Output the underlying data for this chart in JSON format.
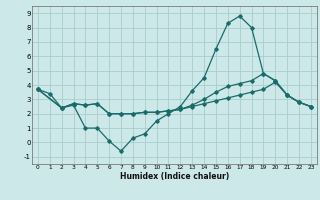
{
  "title": "",
  "xlabel": "Humidex (Indice chaleur)",
  "background_color": "#cde8e8",
  "grid_color": "#aacccc",
  "line_color": "#1a6b6b",
  "xlim": [
    -0.5,
    23.5
  ],
  "ylim": [
    -1.5,
    9.5
  ],
  "xticks": [
    0,
    1,
    2,
    3,
    4,
    5,
    6,
    7,
    8,
    9,
    10,
    11,
    12,
    13,
    14,
    15,
    16,
    17,
    18,
    19,
    20,
    21,
    22,
    23
  ],
  "yticks": [
    -1,
    0,
    1,
    2,
    3,
    4,
    5,
    6,
    7,
    8,
    9
  ],
  "line1_x": [
    0,
    1,
    2,
    3,
    4,
    5,
    6,
    7,
    8,
    9,
    10,
    11,
    12,
    13,
    14,
    15,
    16,
    17,
    18,
    19,
    20,
    21,
    22,
    23
  ],
  "line1_y": [
    3.7,
    3.4,
    2.4,
    2.6,
    1.0,
    1.0,
    0.1,
    -0.6,
    0.3,
    0.6,
    1.5,
    2.0,
    2.5,
    3.6,
    4.5,
    6.5,
    8.3,
    8.8,
    8.0,
    4.8,
    4.3,
    3.3,
    2.8,
    2.5
  ],
  "line2_x": [
    0,
    2,
    3,
    4,
    5,
    6,
    7,
    8,
    9,
    10,
    11,
    12,
    13,
    14,
    15,
    16,
    17,
    18,
    19,
    20,
    21,
    22,
    23
  ],
  "line2_y": [
    3.7,
    2.4,
    2.7,
    2.6,
    2.7,
    2.0,
    2.0,
    2.0,
    2.1,
    2.1,
    2.2,
    2.3,
    2.6,
    3.0,
    3.5,
    3.9,
    4.1,
    4.3,
    4.8,
    4.3,
    3.3,
    2.8,
    2.5
  ],
  "line3_x": [
    0,
    2,
    3,
    4,
    5,
    6,
    7,
    8,
    9,
    10,
    11,
    12,
    13,
    14,
    15,
    16,
    17,
    18,
    19,
    20,
    21,
    22,
    23
  ],
  "line3_y": [
    3.7,
    2.4,
    2.7,
    2.6,
    2.7,
    2.0,
    2.0,
    2.0,
    2.1,
    2.1,
    2.2,
    2.3,
    2.5,
    2.7,
    2.9,
    3.1,
    3.3,
    3.5,
    3.7,
    4.2,
    3.3,
    2.8,
    2.5
  ]
}
